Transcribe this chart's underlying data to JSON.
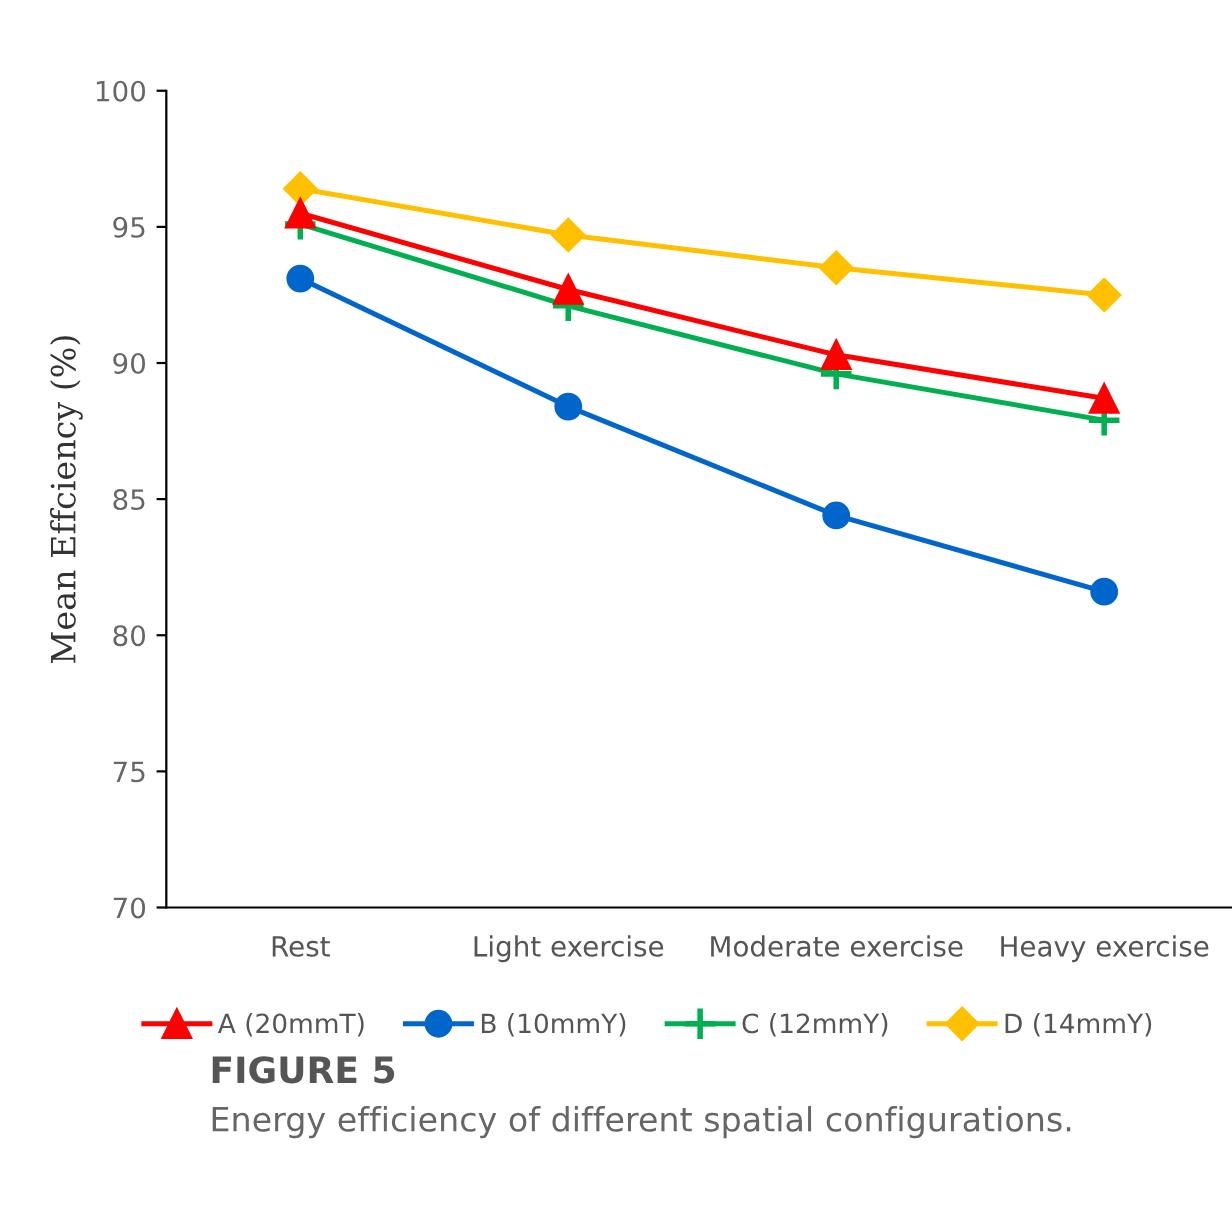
{
  "chart_data": {
    "type": "line",
    "title": "FIGURE 5",
    "subtitle": "Energy efficiency of different spatial configurations.",
    "ylabel": "Mean Effciency (%)",
    "categories": [
      "Rest",
      "Light exercise",
      "Moderate exercise",
      "Heavy exercise"
    ],
    "series": [
      {
        "name": "A (20mmT)",
        "color": "#ff0000",
        "marker": "triangle",
        "values": [
          95.5,
          92.7,
          90.3,
          88.7
        ]
      },
      {
        "name": "B (10mmY)",
        "color": "#0066cc",
        "marker": "circle",
        "values": [
          93.1,
          88.4,
          84.4,
          81.6
        ]
      },
      {
        "name": "C (12mmY)",
        "color": "#00b050",
        "marker": "cross",
        "values": [
          95.1,
          92.1,
          89.6,
          87.9
        ]
      },
      {
        "name": "D (14mmY)",
        "color": "#ffc000",
        "marker": "diamond",
        "values": [
          96.4,
          94.7,
          93.5,
          92.5
        ]
      }
    ],
    "ylim": [
      70,
      100
    ],
    "yticks": [
      70,
      75,
      80,
      85,
      90,
      95,
      100
    ],
    "grid": false,
    "legend": "bottom",
    "line_style": "solid"
  }
}
